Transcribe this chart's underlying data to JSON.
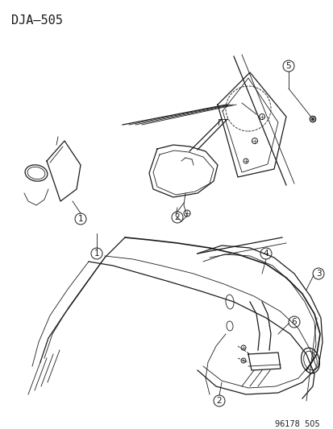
{
  "title": "DJA–505",
  "footer": "96178  505",
  "bg_color": "#ffffff",
  "line_color": "#1a1a1a",
  "title_fontsize": 11,
  "footer_fontsize": 7,
  "callout_fontsize": 7.5,
  "figsize": [
    4.14,
    5.33
  ],
  "dpi": 100
}
